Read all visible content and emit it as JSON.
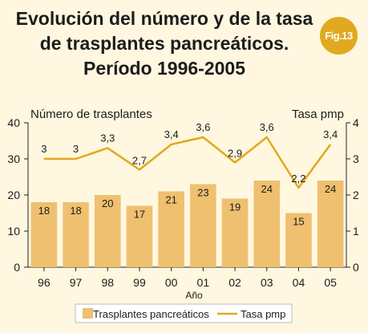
{
  "title": {
    "line1": "Evolución del número y de la tasa",
    "line2": "de trasplantes pancreáticos.",
    "line3": "Período 1996-2005"
  },
  "badge": "Fig.13",
  "colors": {
    "background": "#fff7df",
    "bar": "#efc06f",
    "line": "#e0a91f",
    "badge": "#e0a91f",
    "axis": "#222222"
  },
  "chart_data": {
    "type": "bar",
    "title": "",
    "xlabel": "Año",
    "ylabel_left": "Número de trasplantes",
    "ylabel_right": "Tasa pmp",
    "categories": [
      "96",
      "97",
      "98",
      "99",
      "00",
      "01",
      "02",
      "03",
      "04",
      "05"
    ],
    "ylim_left": [
      0,
      40
    ],
    "yticks_left": [
      "0",
      "10",
      "20",
      "30",
      "40"
    ],
    "ylim_right": [
      0,
      4
    ],
    "yticks_right": [
      "0",
      "1",
      "2",
      "3",
      "4"
    ],
    "grid": false,
    "legend_position": "bottom",
    "series": [
      {
        "name": "Trasplantes pancreáticos",
        "type": "bar",
        "axis": "left",
        "values": [
          18,
          18,
          20,
          17,
          21,
          23,
          19,
          24,
          15,
          24
        ],
        "labels": [
          "18",
          "18",
          "20",
          "17",
          "21",
          "23",
          "19",
          "24",
          "15",
          "24"
        ]
      },
      {
        "name": "Tasa pmp",
        "type": "line",
        "axis": "right",
        "values": [
          3.0,
          3.0,
          3.3,
          2.7,
          3.4,
          3.6,
          2.9,
          3.6,
          2.2,
          3.4
        ],
        "labels": [
          "3",
          "3",
          "3,3",
          "2,7",
          "3,4",
          "3,6",
          "2,9",
          "3,6",
          "2,2",
          "3,4"
        ]
      }
    ]
  }
}
